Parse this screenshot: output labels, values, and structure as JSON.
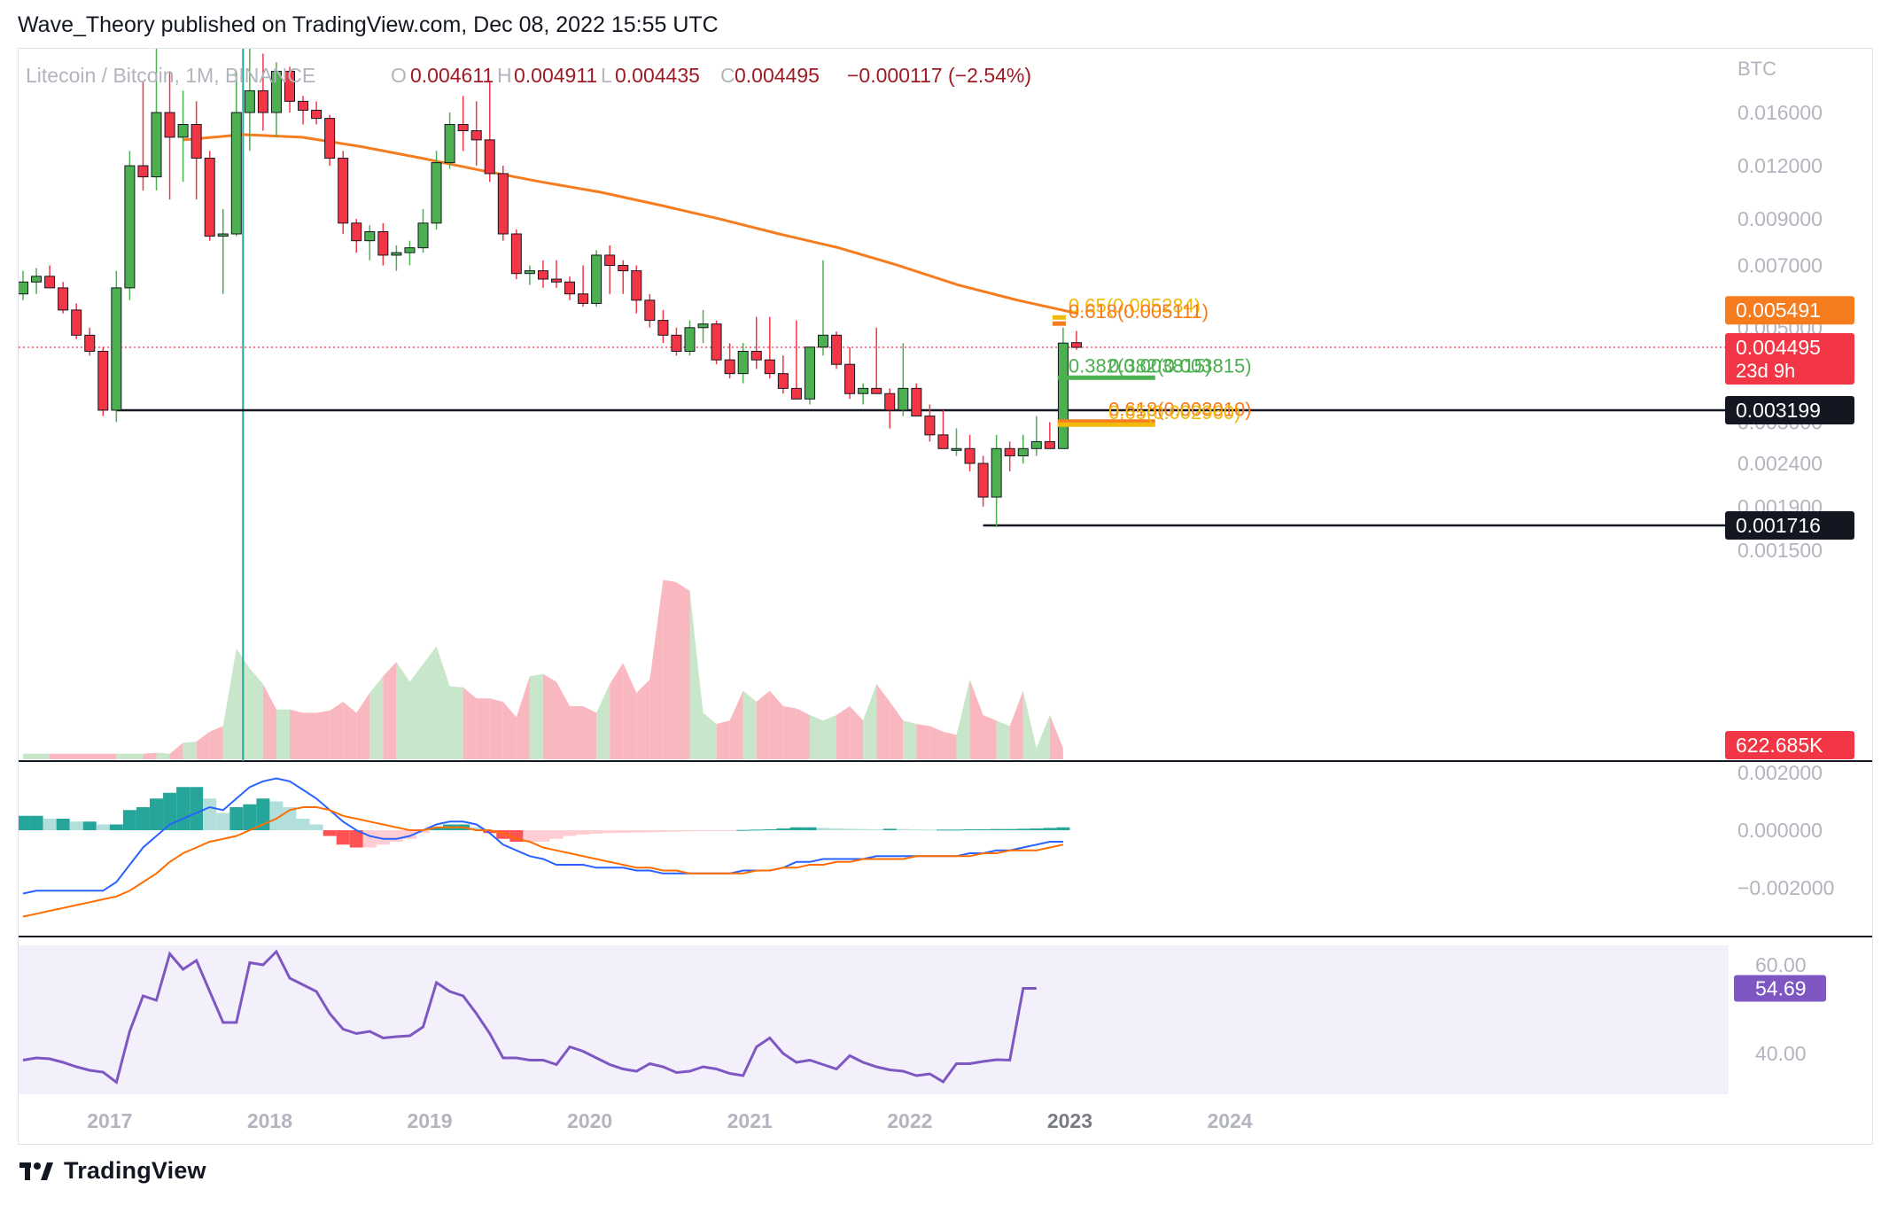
{
  "header": {
    "text": "Wave_Theory published on TradingView.com, Dec 08, 2022 15:55 UTC"
  },
  "legend": {
    "symbol": "Litecoin / Bitcoin, 1M, BINANCE",
    "o_label": "O",
    "o_value": "0.004611",
    "h_label": "H",
    "h_value": "0.004911",
    "l_label": "L",
    "l_value": "0.004435",
    "c_label": "C",
    "c_value": "0.004495",
    "change": "−0.000117 (−2.54%)"
  },
  "footer": {
    "brand": "TradingView"
  },
  "colors": {
    "up": "#4caf50",
    "down": "#f23645",
    "ma": "#f57c1f",
    "macd": "#2962ff",
    "signal": "#ff6d00",
    "rsi": "#7e57c2",
    "fib_green": "#4caf50",
    "fib_gold": "#f0b90b"
  },
  "chart_data": [
    {
      "type": "candlestick",
      "symbol": "Litecoin / Bitcoin",
      "interval": "1M",
      "exchange": "BINANCE",
      "y_unit": "BTC",
      "y_scale": "log",
      "y_ticks": [
        "0.016000",
        "0.012000",
        "0.009000",
        "0.007000",
        "0.005000",
        "0.003000",
        "0.002400",
        "0.001900",
        "0.001500"
      ],
      "x_ticks": [
        "2017",
        "2018",
        "2019",
        "2020",
        "2021",
        "2022",
        "2023",
        "2024"
      ],
      "grid": false,
      "candles": [
        {
          "t": "2016-07",
          "o": 0.006,
          "h": 0.0068,
          "l": 0.0058,
          "c": 0.0064
        },
        {
          "t": "2016-08",
          "o": 0.0064,
          "h": 0.0069,
          "l": 0.006,
          "c": 0.0066
        },
        {
          "t": "2016-09",
          "o": 0.0066,
          "h": 0.007,
          "l": 0.0062,
          "c": 0.0062
        },
        {
          "t": "2016-10",
          "o": 0.0062,
          "h": 0.0064,
          "l": 0.0054,
          "c": 0.0055
        },
        {
          "t": "2016-11",
          "o": 0.0055,
          "h": 0.0057,
          "l": 0.0047,
          "c": 0.0048
        },
        {
          "t": "2016-12",
          "o": 0.0048,
          "h": 0.005,
          "l": 0.0043,
          "c": 0.0044
        },
        {
          "t": "2017-01",
          "o": 0.0044,
          "h": 0.0045,
          "l": 0.0031,
          "c": 0.0032
        },
        {
          "t": "2017-02",
          "o": 0.0032,
          "h": 0.0068,
          "l": 0.003,
          "c": 0.0062
        },
        {
          "t": "2017-03",
          "o": 0.0062,
          "h": 0.013,
          "l": 0.0058,
          "c": 0.012
        },
        {
          "t": "2017-04",
          "o": 0.012,
          "h": 0.019,
          "l": 0.0105,
          "c": 0.0113
        },
        {
          "t": "2017-05",
          "o": 0.0113,
          "h": 0.023,
          "l": 0.0105,
          "c": 0.016
        },
        {
          "t": "2017-06",
          "o": 0.016,
          "h": 0.02,
          "l": 0.01,
          "c": 0.014
        },
        {
          "t": "2017-07",
          "o": 0.014,
          "h": 0.018,
          "l": 0.011,
          "c": 0.015
        },
        {
          "t": "2017-08",
          "o": 0.015,
          "h": 0.017,
          "l": 0.01,
          "c": 0.0125
        },
        {
          "t": "2017-09",
          "o": 0.0125,
          "h": 0.013,
          "l": 0.008,
          "c": 0.0082
        },
        {
          "t": "2017-10",
          "o": 0.0082,
          "h": 0.0095,
          "l": 0.006,
          "c": 0.0083
        },
        {
          "t": "2017-11",
          "o": 0.0083,
          "h": 0.02,
          "l": 0.0082,
          "c": 0.016
        },
        {
          "t": "2017-12",
          "o": 0.016,
          "h": 0.023,
          "l": 0.013,
          "c": 0.018
        },
        {
          "t": "2018-01",
          "o": 0.018,
          "h": 0.022,
          "l": 0.0145,
          "c": 0.016
        },
        {
          "t": "2018-02",
          "o": 0.016,
          "h": 0.021,
          "l": 0.014,
          "c": 0.02
        },
        {
          "t": "2018-03",
          "o": 0.02,
          "h": 0.0205,
          "l": 0.016,
          "c": 0.017
        },
        {
          "t": "2018-04",
          "o": 0.017,
          "h": 0.0175,
          "l": 0.015,
          "c": 0.0162
        },
        {
          "t": "2018-05",
          "o": 0.0162,
          "h": 0.017,
          "l": 0.015,
          "c": 0.0155
        },
        {
          "t": "2018-06",
          "o": 0.0155,
          "h": 0.0158,
          "l": 0.012,
          "c": 0.0125
        },
        {
          "t": "2018-07",
          "o": 0.0125,
          "h": 0.013,
          "l": 0.0083,
          "c": 0.0088
        },
        {
          "t": "2018-08",
          "o": 0.0088,
          "h": 0.009,
          "l": 0.0075,
          "c": 0.008
        },
        {
          "t": "2018-09",
          "o": 0.008,
          "h": 0.0087,
          "l": 0.0072,
          "c": 0.0084
        },
        {
          "t": "2018-10",
          "o": 0.0084,
          "h": 0.0088,
          "l": 0.007,
          "c": 0.0074
        },
        {
          "t": "2018-11",
          "o": 0.0074,
          "h": 0.0078,
          "l": 0.0068,
          "c": 0.0075
        },
        {
          "t": "2018-12",
          "o": 0.0075,
          "h": 0.008,
          "l": 0.007,
          "c": 0.0077
        },
        {
          "t": "2019-01",
          "o": 0.0077,
          "h": 0.0095,
          "l": 0.0075,
          "c": 0.0088
        },
        {
          "t": "2019-02",
          "o": 0.0088,
          "h": 0.013,
          "l": 0.0085,
          "c": 0.0122
        },
        {
          "t": "2019-03",
          "o": 0.0122,
          "h": 0.016,
          "l": 0.0118,
          "c": 0.015
        },
        {
          "t": "2019-04",
          "o": 0.015,
          "h": 0.0175,
          "l": 0.013,
          "c": 0.0145
        },
        {
          "t": "2019-05",
          "o": 0.0145,
          "h": 0.017,
          "l": 0.012,
          "c": 0.0138
        },
        {
          "t": "2019-06",
          "o": 0.0138,
          "h": 0.019,
          "l": 0.011,
          "c": 0.0115
        },
        {
          "t": "2019-07",
          "o": 0.0115,
          "h": 0.012,
          "l": 0.008,
          "c": 0.0083
        },
        {
          "t": "2019-08",
          "o": 0.0083,
          "h": 0.0085,
          "l": 0.0065,
          "c": 0.0067
        },
        {
          "t": "2019-09",
          "o": 0.0067,
          "h": 0.007,
          "l": 0.0063,
          "c": 0.0068
        },
        {
          "t": "2019-10",
          "o": 0.0068,
          "h": 0.0072,
          "l": 0.0062,
          "c": 0.0065
        },
        {
          "t": "2019-11",
          "o": 0.0065,
          "h": 0.0072,
          "l": 0.0062,
          "c": 0.0064
        },
        {
          "t": "2019-12",
          "o": 0.0064,
          "h": 0.0066,
          "l": 0.0058,
          "c": 0.006
        },
        {
          "t": "2020-01",
          "o": 0.006,
          "h": 0.007,
          "l": 0.0056,
          "c": 0.0057
        },
        {
          "t": "2020-02",
          "o": 0.0057,
          "h": 0.0076,
          "l": 0.0056,
          "c": 0.0074
        },
        {
          "t": "2020-03",
          "o": 0.0074,
          "h": 0.0078,
          "l": 0.006,
          "c": 0.007
        },
        {
          "t": "2020-04",
          "o": 0.007,
          "h": 0.0072,
          "l": 0.006,
          "c": 0.0068
        },
        {
          "t": "2020-05",
          "o": 0.0068,
          "h": 0.007,
          "l": 0.0054,
          "c": 0.0058
        },
        {
          "t": "2020-06",
          "o": 0.0058,
          "h": 0.006,
          "l": 0.005,
          "c": 0.0052
        },
        {
          "t": "2020-07",
          "o": 0.0052,
          "h": 0.0055,
          "l": 0.0046,
          "c": 0.0048
        },
        {
          "t": "2020-08",
          "o": 0.0048,
          "h": 0.005,
          "l": 0.0043,
          "c": 0.0044
        },
        {
          "t": "2020-09",
          "o": 0.0044,
          "h": 0.0052,
          "l": 0.0043,
          "c": 0.005
        },
        {
          "t": "2020-10",
          "o": 0.005,
          "h": 0.0055,
          "l": 0.0046,
          "c": 0.0051
        },
        {
          "t": "2020-11",
          "o": 0.0051,
          "h": 0.0052,
          "l": 0.0041,
          "c": 0.0042
        },
        {
          "t": "2020-12",
          "o": 0.0042,
          "h": 0.0046,
          "l": 0.0038,
          "c": 0.0039
        },
        {
          "t": "2021-01",
          "o": 0.0039,
          "h": 0.0046,
          "l": 0.0037,
          "c": 0.0044
        },
        {
          "t": "2021-02",
          "o": 0.0044,
          "h": 0.0053,
          "l": 0.004,
          "c": 0.0042
        },
        {
          "t": "2021-03",
          "o": 0.0042,
          "h": 0.0053,
          "l": 0.0038,
          "c": 0.0039
        },
        {
          "t": "2021-04",
          "o": 0.0039,
          "h": 0.0043,
          "l": 0.0035,
          "c": 0.0036
        },
        {
          "t": "2021-05",
          "o": 0.0036,
          "h": 0.0052,
          "l": 0.0034,
          "c": 0.0034
        },
        {
          "t": "2021-06",
          "o": 0.0034,
          "h": 0.0045,
          "l": 0.0033,
          "c": 0.0045
        },
        {
          "t": "2021-07",
          "o": 0.0045,
          "h": 0.0072,
          "l": 0.0043,
          "c": 0.0048
        },
        {
          "t": "2021-08",
          "o": 0.0048,
          "h": 0.0049,
          "l": 0.004,
          "c": 0.0041
        },
        {
          "t": "2021-09",
          "o": 0.0041,
          "h": 0.0045,
          "l": 0.0034,
          "c": 0.0035
        },
        {
          "t": "2021-10",
          "o": 0.0035,
          "h": 0.0037,
          "l": 0.0033,
          "c": 0.0036
        },
        {
          "t": "2021-11",
          "o": 0.0036,
          "h": 0.005,
          "l": 0.0035,
          "c": 0.0035
        },
        {
          "t": "2021-12",
          "o": 0.0035,
          "h": 0.0036,
          "l": 0.0029,
          "c": 0.0032
        },
        {
          "t": "2022-01",
          "o": 0.0032,
          "h": 0.0046,
          "l": 0.0031,
          "c": 0.0036
        },
        {
          "t": "2022-02",
          "o": 0.0036,
          "h": 0.0037,
          "l": 0.0031,
          "c": 0.0031
        },
        {
          "t": "2022-03",
          "o": 0.0031,
          "h": 0.0033,
          "l": 0.0027,
          "c": 0.0028
        },
        {
          "t": "2022-04",
          "o": 0.0028,
          "h": 0.0032,
          "l": 0.0026,
          "c": 0.0026
        },
        {
          "t": "2022-05",
          "o": 0.0026,
          "h": 0.0029,
          "l": 0.0025,
          "c": 0.0026
        },
        {
          "t": "2022-06",
          "o": 0.0026,
          "h": 0.0028,
          "l": 0.0023,
          "c": 0.0024
        },
        {
          "t": "2022-07",
          "o": 0.0024,
          "h": 0.0025,
          "l": 0.0019,
          "c": 0.002
        },
        {
          "t": "2022-08",
          "o": 0.002,
          "h": 0.0028,
          "l": 0.0017,
          "c": 0.0026
        },
        {
          "t": "2022-09",
          "o": 0.0026,
          "h": 0.0027,
          "l": 0.0023,
          "c": 0.0025
        },
        {
          "t": "2022-10",
          "o": 0.0025,
          "h": 0.0028,
          "l": 0.0024,
          "c": 0.0026
        },
        {
          "t": "2022-11",
          "o": 0.0026,
          "h": 0.0031,
          "l": 0.0025,
          "c": 0.0027
        },
        {
          "t": "2022-12",
          "o": 0.0027,
          "h": 0.003,
          "l": 0.0026,
          "c": 0.0026
        },
        {
          "t": "2023-01",
          "o": 0.0026,
          "h": 0.005,
          "l": 0.0026,
          "c": 0.0046
        },
        {
          "t": "2023-02",
          "o": 0.004611,
          "h": 0.004911,
          "l": 0.004435,
          "c": 0.004495
        }
      ],
      "ma_series": [
        0.0138,
        0.0142,
        0.014,
        0.0133,
        0.0125,
        0.0117,
        0.011,
        0.0104,
        0.0097,
        0.009,
        0.0083,
        0.0077,
        0.007,
        0.0063,
        0.0058,
        0.0054
      ],
      "price_labels": [
        {
          "text": "0.005491",
          "bg": "#f57c1f",
          "value": 0.005491
        },
        {
          "text": "0.004495",
          "bg": "#f23645",
          "value": 0.004495,
          "sub": "23d 9h"
        },
        {
          "text": "0.003199",
          "bg": "#131722",
          "value": 0.003199
        },
        {
          "text": "0.001716",
          "bg": "#131722",
          "value": 0.001716
        }
      ],
      "horizontal_lines": [
        0.003199,
        0.001716
      ],
      "fib_levels": [
        {
          "label": "0.65(0.005284)",
          "value": 0.005284,
          "color": "#f0b90b"
        },
        {
          "label": "0.618(0.005111)",
          "value": 0.005111,
          "color": "#f57c1f"
        },
        {
          "label": "0.382(0.003815)",
          "value": 0.003815,
          "color": "#4caf50"
        },
        {
          "label": "0.382(0.003815)",
          "value": 0.003815,
          "color": "#4caf50"
        },
        {
          "label": "0.618(0.003010)",
          "value": 0.00301,
          "color": "#f57c1f"
        },
        {
          "label": "0.65(0.002960)",
          "value": 0.00296,
          "color": "#f0b90b"
        }
      ],
      "volume_label": "622.685K"
    },
    {
      "type": "bar",
      "name": "MACD histogram",
      "y_ticks": [
        "0.002000",
        "0.000000",
        "−0.002000"
      ],
      "hist": [
        0.0005,
        0.0005,
        0.0004,
        0.0004,
        0.0003,
        0.0003,
        0.0002,
        0.0002,
        0.0007,
        0.0008,
        0.0011,
        0.0013,
        0.0015,
        0.0015,
        0.0011,
        0.0006,
        0.0008,
        0.0009,
        0.0011,
        0.001,
        0.0008,
        0.0004,
        0.0002,
        -0.0002,
        -0.0005,
        -0.0006,
        -0.0006,
        -0.0005,
        -0.0004,
        -0.0003,
        -0.0001,
        0.0001,
        0.0002,
        0.0002,
        0.0001,
        -0.0001,
        -0.0003,
        -0.0004,
        -0.0004,
        -0.0004,
        -0.0003,
        -0.0002,
        -0.00015,
        -0.00012,
        -0.0001,
        -9e-05,
        -8e-05,
        -7e-05,
        -6e-05,
        -5e-05,
        -4e-05,
        -3e-05,
        -2e-05,
        -1e-05,
        1e-05,
        2e-05,
        3e-05,
        6e-05,
        0.0001,
        0.0001,
        8e-05,
        6e-05,
        5e-05,
        4e-05,
        3e-05,
        5e-05,
        4e-05,
        3e-05,
        2e-05,
        2e-05,
        2e-05,
        3e-05,
        3e-05,
        4e-05,
        4e-05,
        5e-05,
        6e-05,
        8e-05,
        0.0001
      ],
      "macd": [
        -0.0022,
        -0.0021,
        -0.0021,
        -0.0021,
        -0.0021,
        -0.0021,
        -0.0021,
        -0.0018,
        -0.0012,
        -0.0006,
        -0.0002,
        0.0002,
        0.0004,
        0.0006,
        0.0008,
        0.0007,
        0.0011,
        0.0015,
        0.0017,
        0.0018,
        0.0017,
        0.0014,
        0.0011,
        0.0007,
        0.0003,
        0.0,
        -0.0002,
        -0.0003,
        -0.0003,
        -0.0002,
        0.0,
        0.0002,
        0.0003,
        0.0003,
        0.0002,
        -0.0001,
        -0.0005,
        -0.0007,
        -0.0009,
        -0.001,
        -0.0012,
        -0.0012,
        -0.0012,
        -0.0013,
        -0.0013,
        -0.0013,
        -0.0014,
        -0.0014,
        -0.0015,
        -0.0015,
        -0.0015,
        -0.0015,
        -0.0015,
        -0.0015,
        -0.0014,
        -0.0014,
        -0.0014,
        -0.0013,
        -0.0011,
        -0.0011,
        -0.001,
        -0.001,
        -0.001,
        -0.001,
        -0.0009,
        -0.0009,
        -0.0009,
        -0.0009,
        -0.0009,
        -0.0009,
        -0.0009,
        -0.0008,
        -0.0008,
        -0.0007,
        -0.0007,
        -0.0006,
        -0.0005,
        -0.0004,
        -0.0004
      ],
      "signal": [
        -0.003,
        -0.0029,
        -0.0028,
        -0.0027,
        -0.0026,
        -0.0025,
        -0.0024,
        -0.0023,
        -0.0021,
        -0.0018,
        -0.0015,
        -0.0011,
        -0.0008,
        -0.0006,
        -0.0004,
        -0.0003,
        -0.0002,
        0.0,
        0.0002,
        0.0004,
        0.0007,
        0.0008,
        0.0008,
        0.0007,
        0.0005,
        0.0004,
        0.0003,
        0.0002,
        0.0001,
        0.0,
        0.0,
        0.0001,
        0.0001,
        0.0001,
        0.0,
        0.0,
        -0.0001,
        -0.0003,
        -0.0004,
        -0.0006,
        -0.0007,
        -0.0008,
        -0.0009,
        -0.001,
        -0.0011,
        -0.0012,
        -0.0013,
        -0.0013,
        -0.0014,
        -0.0014,
        -0.0015,
        -0.0015,
        -0.0015,
        -0.0015,
        -0.0015,
        -0.0014,
        -0.0014,
        -0.0013,
        -0.0013,
        -0.0012,
        -0.0012,
        -0.0011,
        -0.0011,
        -0.001,
        -0.001,
        -0.001,
        -0.001,
        -0.0009,
        -0.0009,
        -0.0009,
        -0.0009,
        -0.0009,
        -0.0008,
        -0.0008,
        -0.0007,
        -0.0007,
        -0.0007,
        -0.0006,
        -0.0005
      ]
    },
    {
      "type": "line",
      "name": "RSI",
      "y_ticks": [
        "60.00",
        "40.00"
      ],
      "values": [
        38.5,
        39,
        38.8,
        38,
        37,
        36.2,
        35.8,
        33.5,
        45,
        53,
        52,
        62.5,
        59,
        61,
        54,
        47,
        47,
        60.5,
        60,
        63,
        57,
        55.5,
        54,
        49,
        45.5,
        44.5,
        45,
        43.5,
        43.8,
        44,
        46,
        56,
        54,
        53,
        49,
        44.5,
        39,
        39,
        38.5,
        38.5,
        37.5,
        41.5,
        40.5,
        39,
        37.5,
        36.5,
        36,
        37.7,
        37,
        35.7,
        36,
        37,
        36.5,
        35.5,
        35,
        41.5,
        43.5,
        40,
        38,
        38.5,
        37.5,
        36.5,
        39.5,
        38,
        37,
        36.3,
        36,
        35,
        35.4,
        33.6,
        37.7,
        37.7,
        38.2,
        38.6,
        38.5,
        54.7,
        54.69
      ],
      "current_label": "54.69"
    }
  ]
}
